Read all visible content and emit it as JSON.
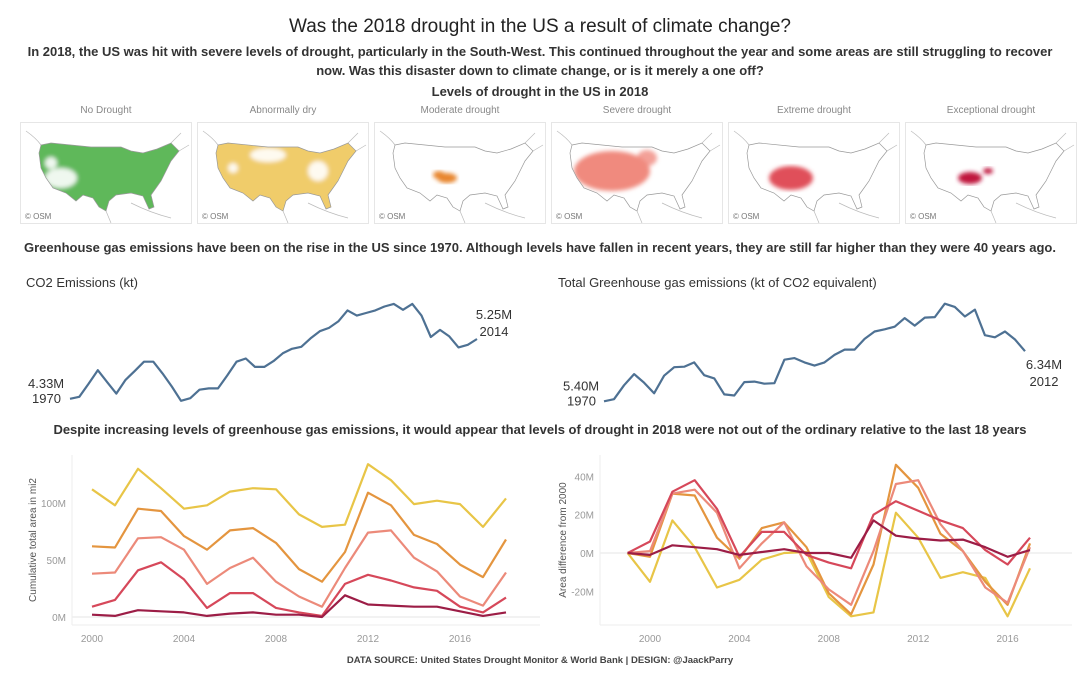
{
  "title": "Was the 2018 drought in the US a result of climate change?",
  "intro": "In 2018, the US was hit with severe levels of drought, particularly in the South-West. This continued throughout the year and some areas are still struggling to recover now. Was this disaster down to climate change, or is it merely a one off?",
  "maps_section": {
    "title": "Levels of drought in the US in 2018",
    "maps": [
      {
        "label": "No Drought",
        "color": "#5fb85a",
        "attribution": "© OSM"
      },
      {
        "label": "Abnormally dry",
        "color": "#f0cc6a",
        "attribution": "© OSM"
      },
      {
        "label": "Moderate drought",
        "color": "#e8862f",
        "attribution": "© OSM"
      },
      {
        "label": "Severe drought",
        "color": "#f08a7e",
        "attribution": "© OSM"
      },
      {
        "label": "Extreme drought",
        "color": "#e0505a",
        "attribution": "© OSM"
      },
      {
        "label": "Exceptional drought",
        "color": "#c0183c",
        "attribution": "© OSM"
      }
    ]
  },
  "emissions_text": "Greenhouse gas emissions have been on the rise in the US since 1970. Although levels have fallen in recent years, they are still far higher than they were 40 years ago.",
  "drought_text": "Despite increasing levels of greenhouse gas emissions, it would appear that levels of drought in 2018 were not out of the ordinary relative to the last 18 years",
  "footer": "DATA SOURCE: United States Drought Monitor & World Bank | DESIGN: @JaackParry",
  "chart_data": [
    {
      "type": "line",
      "title": "CO2 Emissions (kt)",
      "color": "#4e7193",
      "x": [
        1970,
        1971,
        1972,
        1973,
        1974,
        1975,
        1976,
        1977,
        1978,
        1979,
        1980,
        1981,
        1982,
        1983,
        1984,
        1985,
        1986,
        1987,
        1988,
        1989,
        1990,
        1991,
        1992,
        1993,
        1994,
        1995,
        1996,
        1997,
        1998,
        1999,
        2000,
        2001,
        2002,
        2003,
        2004,
        2005,
        2006,
        2007,
        2008,
        2009,
        2010,
        2011,
        2012,
        2013,
        2014
      ],
      "values": [
        4.33,
        4.36,
        4.56,
        4.77,
        4.59,
        4.41,
        4.62,
        4.76,
        4.9,
        4.9,
        4.72,
        4.52,
        4.3,
        4.34,
        4.47,
        4.49,
        4.49,
        4.69,
        4.9,
        4.95,
        4.82,
        4.82,
        4.91,
        5.03,
        5.1,
        5.13,
        5.26,
        5.37,
        5.42,
        5.52,
        5.69,
        5.61,
        5.65,
        5.69,
        5.75,
        5.79,
        5.7,
        5.79,
        5.61,
        5.28,
        5.39,
        5.29,
        5.12,
        5.16,
        5.25
      ],
      "unit": "M",
      "labels": {
        "start_value": "4.33M",
        "start_year": "1970",
        "end_value": "5.25M",
        "end_year": "2014"
      }
    },
    {
      "type": "line",
      "title": "Total Greenhouse gas emissions (kt of CO2 equivalent)",
      "color": "#4e7193",
      "x": [
        1970,
        1971,
        1972,
        1973,
        1974,
        1975,
        1976,
        1977,
        1978,
        1979,
        1980,
        1981,
        1982,
        1983,
        1984,
        1985,
        1986,
        1987,
        1988,
        1989,
        1990,
        1991,
        1992,
        1993,
        1994,
        1995,
        1996,
        1997,
        1998,
        1999,
        2000,
        2001,
        2002,
        2003,
        2004,
        2005,
        2006,
        2007,
        2008,
        2009,
        2010,
        2011,
        2012
      ],
      "values": [
        5.4,
        5.44,
        5.7,
        5.91,
        5.75,
        5.55,
        5.88,
        6.04,
        6.05,
        6.13,
        5.89,
        5.83,
        5.53,
        5.51,
        5.76,
        5.77,
        5.73,
        5.74,
        6.18,
        6.21,
        6.13,
        6.07,
        6.13,
        6.27,
        6.37,
        6.37,
        6.57,
        6.71,
        6.75,
        6.8,
        6.96,
        6.82,
        6.97,
        6.98,
        7.23,
        7.17,
        6.99,
        7.12,
        6.64,
        6.6,
        6.71,
        6.56,
        6.34
      ],
      "unit": "M",
      "labels": {
        "start_value": "5.40M",
        "start_year": "1970",
        "end_value": "6.34M",
        "end_year": "2012"
      }
    },
    {
      "type": "line",
      "ylabel": "Cumulative total area in mi2",
      "x": [
        2000,
        2001,
        2002,
        2003,
        2004,
        2005,
        2006,
        2007,
        2008,
        2009,
        2010,
        2011,
        2012,
        2013,
        2014,
        2015,
        2016,
        2017,
        2018
      ],
      "xticks": [
        "2000",
        "2004",
        "2008",
        "2012",
        "2016"
      ],
      "yticks": [
        "0M",
        "50M",
        "100M"
      ],
      "ylim": [
        0,
        140
      ],
      "grid": false,
      "series": [
        {
          "color": "#e8c547",
          "values": [
            112,
            98,
            130,
            113,
            95,
            98,
            110,
            113,
            112,
            90,
            79,
            81,
            134,
            120,
            99,
            102,
            99,
            79,
            104
          ]
        },
        {
          "color": "#e4953f",
          "values": [
            62,
            61,
            95,
            93,
            71,
            59,
            76,
            78,
            65,
            42,
            31,
            57,
            109,
            98,
            72,
            64,
            46,
            35,
            68
          ]
        },
        {
          "color": "#ec8a7a",
          "values": [
            38,
            39,
            69,
            70,
            59,
            29,
            43,
            52,
            31,
            18,
            9,
            43,
            74,
            76,
            52,
            40,
            18,
            10,
            39
          ]
        },
        {
          "color": "#d6485a",
          "values": [
            9,
            15,
            41,
            48,
            33,
            8,
            21,
            21,
            8,
            4,
            1,
            29,
            37,
            32,
            26,
            23,
            9,
            4,
            17
          ]
        },
        {
          "color": "#9c1d46",
          "values": [
            2,
            1,
            6,
            5,
            4,
            1,
            3,
            4,
            2,
            2,
            0,
            19,
            11,
            10,
            9,
            9,
            5,
            1,
            4
          ]
        }
      ]
    },
    {
      "type": "line",
      "ylabel": "Area difference from 2000",
      "x": [
        1999,
        2000,
        2001,
        2002,
        2003,
        2004,
        2005,
        2006,
        2007,
        2008,
        2009,
        2010,
        2011,
        2012,
        2013,
        2014,
        2015,
        2016,
        2017
      ],
      "xticks": [
        "2000",
        "2004",
        "2008",
        "2012",
        "2016"
      ],
      "yticks": [
        "-20M",
        "0M",
        "20M",
        "40M"
      ],
      "ylim": [
        -37,
        48
      ],
      "grid": false,
      "series": [
        {
          "color": "#e8c547",
          "values": [
            0,
            -15,
            17,
            3,
            -18,
            -14,
            -3.5,
            0,
            0.5,
            -23,
            -33,
            -31,
            21,
            8,
            -13,
            -10,
            -13,
            -33,
            -8
          ]
        },
        {
          "color": "#e4953f",
          "values": [
            0,
            -2,
            31,
            30,
            8,
            -3,
            13,
            16,
            3,
            -21,
            -32,
            -6,
            46,
            34,
            10,
            1,
            -15,
            -27,
            5
          ]
        },
        {
          "color": "#ec8a7a",
          "values": [
            0,
            1,
            31,
            33,
            21,
            -8,
            5,
            16,
            -7,
            -19,
            -27,
            1,
            36,
            38,
            15,
            1,
            -18,
            -26,
            3
          ]
        },
        {
          "color": "#d6485a",
          "values": [
            0,
            6,
            32,
            38,
            23,
            -2,
            11,
            11,
            -1,
            -5,
            -8,
            20,
            27,
            22,
            17,
            13,
            1.5,
            -6,
            8
          ]
        },
        {
          "color": "#9c1d46",
          "values": [
            0,
            -1,
            4,
            3,
            2,
            -1,
            0.5,
            2,
            0,
            0,
            -2.5,
            17,
            9,
            7.5,
            6.5,
            7,
            3,
            -2,
            1.5
          ]
        }
      ]
    }
  ]
}
